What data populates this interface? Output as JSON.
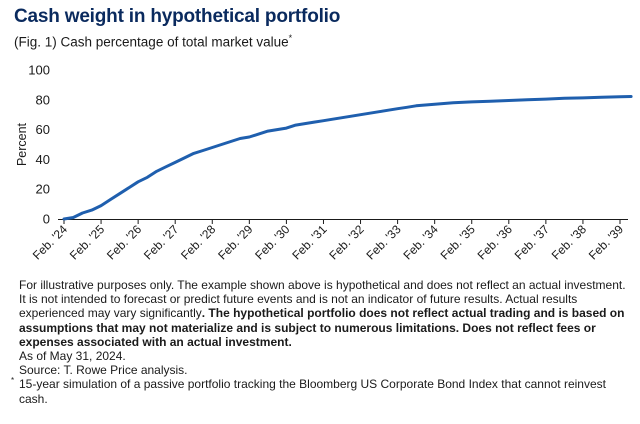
{
  "title": "Cash weight in hypothetical portfolio",
  "subtitle": "(Fig. 1) Cash percentage of total market value",
  "subtitle_mark": "*",
  "colors": {
    "title": "#0a2a5e",
    "line": "#1f5fae",
    "axis": "#1a1a1a"
  },
  "chart_data": {
    "type": "line",
    "ylabel": "Percent",
    "xlabel": "",
    "ylim": [
      0,
      100
    ],
    "yticks": [
      0,
      20,
      40,
      60,
      80,
      100
    ],
    "grid": false,
    "legend": "none",
    "x_tick_labels": [
      "Feb. '24",
      "Feb. '25",
      "Feb. '26",
      "Feb. '27",
      "Feb. '28",
      "Feb. '29",
      "Feb. '30",
      "Feb. '31",
      "Feb. '32",
      "Feb. '33",
      "Feb. '34",
      "Feb. '35",
      "Feb. '36",
      "Feb. '37",
      "Feb. '38",
      "Feb. '39"
    ],
    "series": [
      {
        "x_years": [
          0,
          0.25,
          0.5,
          0.75,
          1,
          1.25,
          1.5,
          1.75,
          2,
          2.25,
          2.5,
          2.75,
          3,
          3.25,
          3.5,
          3.75,
          4,
          4.25,
          4.5,
          4.75,
          5,
          5.25,
          5.5,
          5.75,
          6,
          6.25,
          6.5,
          6.75,
          7,
          7.25,
          7.5,
          7.75,
          8,
          8.25,
          8.5,
          8.75,
          9,
          9.25,
          9.5,
          9.75,
          10,
          10.5,
          11,
          11.5,
          12,
          12.5,
          13,
          13.5,
          14,
          14.5,
          15,
          15.3
        ],
        "values": [
          0,
          1,
          4,
          6,
          9,
          13,
          17,
          21,
          25,
          28,
          32,
          35,
          38,
          41,
          44,
          46,
          48,
          50,
          52,
          54,
          55,
          57,
          59,
          60,
          61,
          63,
          64,
          65,
          66,
          67,
          68,
          69,
          70,
          71,
          72,
          73,
          74,
          75,
          76,
          76.5,
          77,
          78,
          78.6,
          79,
          79.5,
          80,
          80.5,
          81,
          81.3,
          81.7,
          82,
          82.2
        ]
      }
    ]
  },
  "notes": {
    "p1_normal": "For illustrative purposes only. The example shown above is hypothetical and does not reflect an actual investment. It is not intended to forecast or predict future events and is not an indicator of future results. Actual results experienced may vary significantly",
    "p1_bold": ". The hypothetical portfolio does not reflect actual trading and is based on assumptions that may not materialize and is subject to numerous limitations. Does not reflect fees or expenses associated with an actual investment.",
    "as_of": "As of May 31, 2024.",
    "source": "Source: T. Rowe Price analysis.",
    "footnote_mark": "*",
    "footnote": "15-year simulation of a passive portfolio tracking the Bloomberg US Corporate Bond Index that cannot reinvest cash."
  }
}
